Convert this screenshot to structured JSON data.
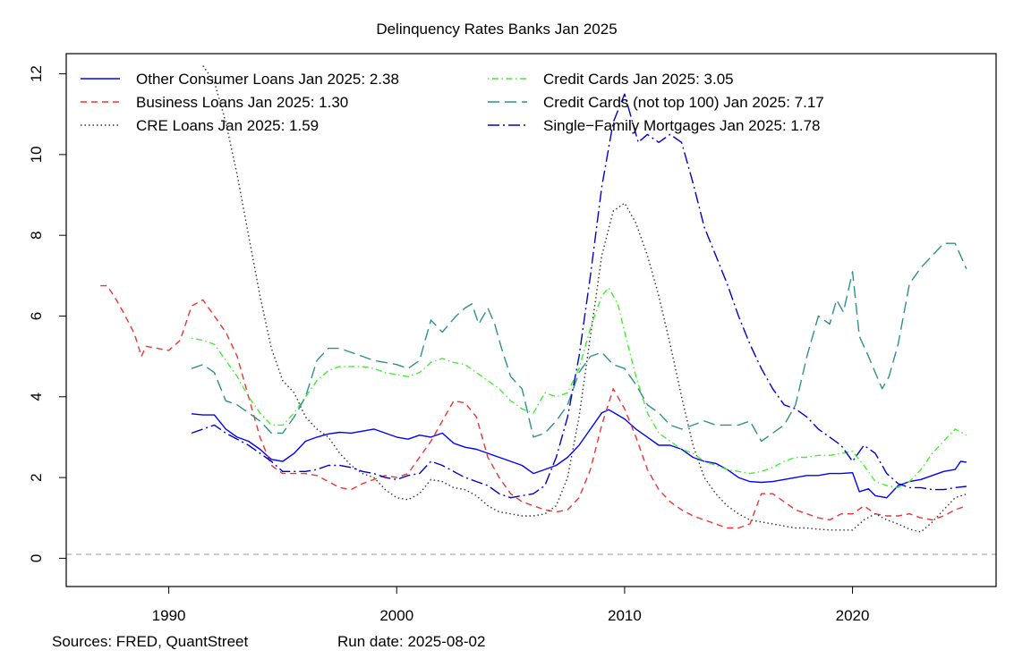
{
  "chart_data": {
    "type": "line",
    "title": "Delinquency Rates Banks Jan 2025",
    "xlabel": "",
    "ylabel": "",
    "xlim": [
      1985.5,
      2026.3
    ],
    "ylim": [
      -0.7,
      12.5
    ],
    "x_ticks": [
      1990,
      2000,
      2010,
      2020
    ],
    "y_ticks": [
      0,
      2,
      4,
      6,
      8,
      10,
      12
    ],
    "reference_line": {
      "y": 0,
      "color": "#bbbbbb",
      "style": "dashed"
    },
    "legend_placement": "top-left",
    "footer": {
      "sources": "Sources: FRED, QuantStreet",
      "run_date": "Run date: 2025-08-02"
    },
    "series": [
      {
        "name": "Other Consumer Loans Jan 2025: 2.38",
        "color": "#0000ff",
        "dash": "solid",
        "x": [
          1991.0,
          1991.5,
          1992.0,
          1992.5,
          1993.0,
          1993.5,
          1994.0,
          1994.5,
          1995.0,
          1995.5,
          1996.0,
          1996.5,
          1997.0,
          1997.5,
          1998.0,
          1998.5,
          1999.0,
          1999.5,
          2000.0,
          2000.5,
          2001.0,
          2001.5,
          2002.0,
          2002.5,
          2003.0,
          2003.5,
          2004.0,
          2004.5,
          2005.0,
          2005.5,
          2006.0,
          2006.5,
          2007.0,
          2007.5,
          2008.0,
          2008.5,
          2009.0,
          2009.3,
          2009.7,
          2010.0,
          2010.5,
          2011.0,
          2011.5,
          2012.0,
          2012.5,
          2013.0,
          2013.5,
          2014.0,
          2014.5,
          2015.0,
          2015.5,
          2016.0,
          2016.5,
          2017.0,
          2017.5,
          2018.0,
          2018.5,
          2019.0,
          2019.5,
          2020.0,
          2020.3,
          2020.7,
          2021.0,
          2021.5,
          2022.0,
          2022.5,
          2023.0,
          2023.5,
          2024.0,
          2024.5,
          2024.75,
          2025.0
        ],
        "values": [
          3.58,
          3.55,
          3.55,
          3.2,
          3.0,
          2.9,
          2.7,
          2.45,
          2.4,
          2.6,
          2.9,
          3.0,
          3.08,
          3.12,
          3.1,
          3.15,
          3.2,
          3.1,
          3.0,
          2.95,
          3.05,
          3.0,
          3.1,
          2.85,
          2.75,
          2.7,
          2.6,
          2.5,
          2.4,
          2.3,
          2.1,
          2.2,
          2.3,
          2.5,
          2.8,
          3.2,
          3.6,
          3.68,
          3.55,
          3.45,
          3.2,
          3.0,
          2.8,
          2.8,
          2.7,
          2.5,
          2.4,
          2.35,
          2.2,
          2.0,
          1.9,
          1.88,
          1.9,
          1.95,
          2.0,
          2.05,
          2.05,
          2.1,
          2.1,
          2.12,
          1.65,
          1.72,
          1.55,
          1.5,
          1.8,
          1.9,
          1.95,
          2.05,
          2.15,
          2.2,
          2.4,
          2.38
        ]
      },
      {
        "name": "Business Loans Jan 2025: 1.30",
        "color": "#ee3333",
        "dash": "dashed",
        "x": [
          1987.0,
          1987.3,
          1987.7,
          1988.0,
          1988.5,
          1988.8,
          1989.0,
          1989.5,
          1990.0,
          1990.5,
          1991.0,
          1991.5,
          1992.0,
          1992.5,
          1993.0,
          1993.5,
          1994.0,
          1994.5,
          1995.0,
          1995.5,
          1996.0,
          1996.5,
          1997.0,
          1997.5,
          1998.0,
          1998.5,
          1999.0,
          1999.5,
          2000.0,
          2000.5,
          2001.0,
          2001.5,
          2002.0,
          2002.5,
          2003.0,
          2003.5,
          2004.0,
          2004.5,
          2005.0,
          2005.5,
          2006.0,
          2006.5,
          2007.0,
          2007.5,
          2008.0,
          2008.5,
          2009.0,
          2009.5,
          2010.0,
          2010.5,
          2011.0,
          2011.5,
          2012.0,
          2012.5,
          2013.0,
          2013.5,
          2014.0,
          2014.5,
          2015.0,
          2015.5,
          2016.0,
          2016.5,
          2017.0,
          2017.5,
          2018.0,
          2018.5,
          2019.0,
          2019.5,
          2020.0,
          2020.5,
          2021.0,
          2021.5,
          2022.0,
          2022.5,
          2023.0,
          2023.5,
          2024.0,
          2024.5,
          2025.0
        ],
        "values": [
          6.75,
          6.75,
          6.4,
          6.1,
          5.55,
          5.0,
          5.25,
          5.2,
          5.15,
          5.4,
          6.25,
          6.4,
          6.0,
          5.6,
          5.0,
          4.0,
          3.0,
          2.3,
          2.1,
          2.1,
          2.1,
          2.05,
          1.9,
          1.75,
          1.7,
          1.85,
          1.95,
          2.05,
          2.0,
          2.1,
          2.5,
          2.9,
          3.4,
          3.9,
          3.85,
          3.5,
          2.5,
          2.0,
          1.6,
          1.4,
          1.3,
          1.2,
          1.15,
          1.2,
          1.5,
          2.2,
          3.3,
          4.2,
          3.7,
          3.0,
          2.2,
          1.7,
          1.4,
          1.2,
          1.05,
          0.95,
          0.85,
          0.75,
          0.75,
          0.85,
          1.6,
          1.6,
          1.4,
          1.2,
          1.1,
          1.0,
          0.95,
          1.1,
          1.1,
          1.3,
          1.1,
          1.05,
          1.05,
          1.1,
          1.0,
          0.95,
          1.05,
          1.2,
          1.3
        ]
      },
      {
        "name": "CRE Loans Jan 2025: 1.59",
        "color": "#333333",
        "dash": "dotted",
        "x": [
          1991.5,
          1992.0,
          1992.5,
          1993.0,
          1993.5,
          1994.0,
          1994.5,
          1995.0,
          1995.5,
          1996.0,
          1996.5,
          1997.0,
          1997.5,
          1998.0,
          1998.5,
          1999.0,
          1999.5,
          2000.0,
          2000.5,
          2001.0,
          2001.5,
          2002.0,
          2002.5,
          2003.0,
          2003.5,
          2004.0,
          2004.5,
          2005.0,
          2005.5,
          2006.0,
          2006.5,
          2007.0,
          2007.5,
          2008.0,
          2008.5,
          2009.0,
          2009.5,
          2010.0,
          2010.5,
          2011.0,
          2011.5,
          2012.0,
          2012.5,
          2013.0,
          2013.5,
          2014.0,
          2014.5,
          2015.0,
          2015.5,
          2016.0,
          2016.5,
          2017.0,
          2017.5,
          2018.0,
          2018.5,
          2019.0,
          2019.5,
          2020.0,
          2020.5,
          2021.0,
          2021.5,
          2022.0,
          2022.5,
          2023.0,
          2023.5,
          2024.0,
          2024.5,
          2025.0
        ],
        "values": [
          12.2,
          11.8,
          10.8,
          9.5,
          8.0,
          6.5,
          5.2,
          4.4,
          4.1,
          3.5,
          3.2,
          3.0,
          2.6,
          2.3,
          2.1,
          2.0,
          1.7,
          1.5,
          1.45,
          1.6,
          1.95,
          1.9,
          1.75,
          1.7,
          1.55,
          1.3,
          1.15,
          1.1,
          1.05,
          1.05,
          1.1,
          1.3,
          2.0,
          3.5,
          5.5,
          7.5,
          8.6,
          8.8,
          8.3,
          7.5,
          6.5,
          5.3,
          4.0,
          2.8,
          2.0,
          1.6,
          1.3,
          1.1,
          0.95,
          0.9,
          0.85,
          0.8,
          0.75,
          0.75,
          0.72,
          0.7,
          0.7,
          0.7,
          0.95,
          1.1,
          0.95,
          0.85,
          0.72,
          0.65,
          0.9,
          1.2,
          1.5,
          1.59
        ]
      },
      {
        "name": "Credit Cards Jan 2025: 3.05",
        "color": "#44ee33",
        "dash": "dotdash",
        "x": [
          1991.0,
          1991.5,
          1992.0,
          1992.5,
          1993.0,
          1993.5,
          1994.0,
          1994.5,
          1995.0,
          1995.5,
          1996.0,
          1996.5,
          1997.0,
          1997.5,
          1998.0,
          1998.5,
          1999.0,
          1999.5,
          2000.0,
          2000.5,
          2001.0,
          2001.5,
          2002.0,
          2002.5,
          2003.0,
          2003.5,
          2004.0,
          2004.5,
          2005.0,
          2005.5,
          2006.0,
          2006.5,
          2007.0,
          2007.5,
          2008.0,
          2008.5,
          2009.0,
          2009.3,
          2009.7,
          2010.0,
          2010.5,
          2011.0,
          2011.5,
          2012.0,
          2012.5,
          2013.0,
          2013.5,
          2014.0,
          2014.5,
          2015.0,
          2015.5,
          2016.0,
          2016.5,
          2017.0,
          2017.5,
          2018.0,
          2018.5,
          2019.0,
          2019.5,
          2020.0,
          2020.5,
          2021.0,
          2021.5,
          2022.0,
          2022.5,
          2023.0,
          2023.5,
          2024.0,
          2024.5,
          2025.0
        ],
        "values": [
          5.45,
          5.4,
          5.3,
          4.9,
          4.5,
          4.0,
          3.6,
          3.3,
          3.3,
          3.6,
          4.0,
          4.4,
          4.65,
          4.75,
          4.75,
          4.75,
          4.7,
          4.6,
          4.55,
          4.5,
          4.6,
          4.85,
          4.95,
          4.85,
          4.8,
          4.6,
          4.4,
          4.2,
          3.9,
          3.7,
          3.6,
          4.1,
          4.0,
          4.1,
          4.7,
          5.7,
          6.5,
          6.7,
          6.3,
          5.6,
          4.5,
          3.6,
          3.1,
          2.9,
          2.7,
          2.6,
          2.4,
          2.3,
          2.2,
          2.15,
          2.1,
          2.15,
          2.25,
          2.4,
          2.5,
          2.5,
          2.55,
          2.55,
          2.6,
          2.65,
          2.3,
          1.9,
          1.8,
          1.75,
          1.9,
          2.2,
          2.6,
          2.9,
          3.2,
          3.05
        ]
      },
      {
        "name": "Credit Cards (not top 100) Jan 2025: 7.17",
        "color": "#2f8f8f",
        "dash": "longdash",
        "x": [
          1991.0,
          1991.5,
          1992.0,
          1992.5,
          1993.0,
          1993.5,
          1994.0,
          1994.5,
          1995.0,
          1995.5,
          1996.0,
          1996.5,
          1997.0,
          1997.5,
          1998.0,
          1998.5,
          1999.0,
          1999.5,
          2000.0,
          2000.5,
          2001.0,
          2001.5,
          2002.0,
          2002.3,
          2002.6,
          2003.0,
          2003.3,
          2003.6,
          2004.0,
          2004.3,
          2004.6,
          2005.0,
          2005.5,
          2006.0,
          2006.5,
          2007.0,
          2007.5,
          2008.0,
          2008.5,
          2009.0,
          2009.5,
          2010.0,
          2010.5,
          2011.0,
          2011.5,
          2012.0,
          2012.5,
          2013.0,
          2013.5,
          2014.0,
          2014.5,
          2015.0,
          2015.5,
          2016.0,
          2016.5,
          2017.0,
          2017.5,
          2018.0,
          2018.5,
          2019.0,
          2019.3,
          2019.6,
          2020.0,
          2020.3,
          2020.7,
          2021.0,
          2021.3,
          2021.6,
          2022.0,
          2022.5,
          2023.0,
          2023.5,
          2024.0,
          2024.5,
          2025.0
        ],
        "values": [
          4.7,
          4.8,
          4.6,
          3.9,
          3.8,
          3.6,
          3.4,
          3.1,
          3.1,
          3.5,
          4.0,
          4.9,
          5.2,
          5.2,
          5.1,
          5.0,
          4.9,
          4.85,
          4.8,
          4.7,
          4.9,
          5.9,
          5.6,
          5.8,
          6.0,
          6.2,
          6.3,
          5.8,
          6.2,
          5.8,
          5.2,
          4.5,
          4.2,
          3.0,
          3.1,
          3.4,
          3.8,
          4.6,
          5.0,
          5.1,
          4.8,
          4.7,
          4.3,
          3.8,
          3.6,
          3.3,
          3.2,
          3.3,
          3.4,
          3.3,
          3.3,
          3.3,
          3.4,
          2.9,
          3.1,
          3.3,
          3.8,
          5.0,
          6.0,
          5.8,
          6.4,
          6.1,
          7.1,
          5.5,
          5.0,
          4.6,
          4.2,
          4.5,
          5.3,
          6.8,
          7.2,
          7.5,
          7.8,
          7.8,
          7.17
        ]
      },
      {
        "name": "Single−Family Mortgages Jan 2025: 1.78",
        "color": "#0000cc",
        "dash": "longdashdot",
        "x": [
          1991.0,
          1991.5,
          1992.0,
          1992.5,
          1993.0,
          1993.5,
          1994.0,
          1994.5,
          1995.0,
          1995.5,
          1996.0,
          1996.5,
          1997.0,
          1997.5,
          1998.0,
          1998.5,
          1999.0,
          1999.5,
          2000.0,
          2000.5,
          2001.0,
          2001.5,
          2002.0,
          2002.5,
          2003.0,
          2003.5,
          2004.0,
          2004.5,
          2005.0,
          2005.5,
          2006.0,
          2006.5,
          2007.0,
          2007.5,
          2008.0,
          2008.5,
          2009.0,
          2009.5,
          2010.0,
          2010.3,
          2010.6,
          2011.0,
          2011.5,
          2012.0,
          2012.5,
          2013.0,
          2013.5,
          2014.0,
          2014.5,
          2015.0,
          2015.5,
          2016.0,
          2016.5,
          2017.0,
          2017.5,
          2018.0,
          2018.5,
          2019.0,
          2019.5,
          2020.0,
          2020.5,
          2021.0,
          2021.5,
          2022.0,
          2022.5,
          2023.0,
          2023.5,
          2024.0,
          2024.5,
          2025.0
        ],
        "values": [
          3.1,
          3.2,
          3.3,
          3.1,
          2.95,
          2.8,
          2.6,
          2.4,
          2.15,
          2.15,
          2.15,
          2.2,
          2.3,
          2.3,
          2.25,
          2.15,
          2.1,
          2.0,
          1.95,
          2.05,
          2.1,
          2.4,
          2.3,
          2.15,
          2.0,
          1.9,
          1.8,
          1.6,
          1.5,
          1.55,
          1.6,
          1.8,
          2.5,
          3.5,
          5.0,
          7.0,
          9.2,
          10.8,
          11.5,
          10.9,
          10.3,
          10.5,
          10.3,
          10.5,
          10.3,
          9.3,
          8.2,
          7.5,
          6.8,
          6.0,
          5.3,
          4.7,
          4.2,
          3.8,
          3.7,
          3.5,
          3.2,
          3.0,
          2.8,
          2.4,
          2.8,
          2.6,
          2.1,
          1.85,
          1.75,
          1.75,
          1.7,
          1.7,
          1.75,
          1.78
        ]
      }
    ]
  }
}
